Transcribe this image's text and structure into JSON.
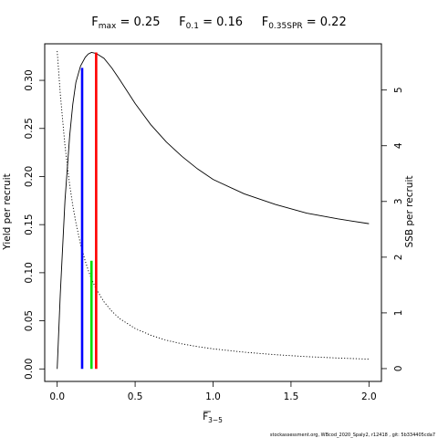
{
  "chart_data": {
    "type": "line",
    "title_parts": [
      {
        "main": "F",
        "sub": "max",
        "rest": " = 0.25"
      },
      {
        "main": "F",
        "sub": "0.1",
        "rest": " = 0.16"
      },
      {
        "main": "F",
        "sub": "0.35SPR",
        "rest": " = 0.22"
      }
    ],
    "xlabel": {
      "main": "F",
      "sub": "3−5"
    },
    "ylabel_left": "Yield per recruit",
    "ylabel_right": "SSB per recruit",
    "xlim": [
      -0.08,
      2.08
    ],
    "ylim_left": [
      -0.013,
      0.338
    ],
    "ylim_right": [
      -0.23,
      5.83
    ],
    "x_ticks": [
      0,
      0.5,
      1,
      1.5,
      2
    ],
    "x_tick_labels": [
      "0.0",
      "0.5",
      "1.0",
      "1.5",
      "2.0"
    ],
    "y_left_ticks": [
      0,
      0.05,
      0.1,
      0.15,
      0.2,
      0.25,
      0.3
    ],
    "y_left_tick_labels": [
      "0.00",
      "0.05",
      "0.10",
      "0.15",
      "0.20",
      "0.25",
      "0.30"
    ],
    "y_right_ticks": [
      0,
      1,
      2,
      3,
      4,
      5
    ],
    "y_right_tick_labels": [
      "0",
      "1",
      "2",
      "3",
      "4",
      "5"
    ],
    "series": [
      {
        "style": "solid",
        "axis": "left",
        "x": [
          0,
          0.02,
          0.05,
          0.08,
          0.1,
          0.12,
          0.15,
          0.18,
          0.2,
          0.22,
          0.25,
          0.3,
          0.35,
          0.4,
          0.5,
          0.6,
          0.7,
          0.8,
          0.9,
          1.0,
          1.2,
          1.4,
          1.6,
          1.8,
          2.0
        ],
        "y": [
          0.0,
          0.078,
          0.175,
          0.242,
          0.275,
          0.298,
          0.315,
          0.324,
          0.3275,
          0.329,
          0.328,
          0.323,
          0.313,
          0.301,
          0.276,
          0.254,
          0.236,
          0.221,
          0.208,
          0.197,
          0.182,
          0.171,
          0.162,
          0.156,
          0.151
        ]
      },
      {
        "style": "dotted",
        "axis": "right",
        "x": [
          0,
          0.02,
          0.05,
          0.08,
          0.1,
          0.12,
          0.15,
          0.18,
          0.2,
          0.22,
          0.25,
          0.3,
          0.35,
          0.4,
          0.5,
          0.6,
          0.7,
          0.8,
          0.9,
          1.0,
          1.2,
          1.4,
          1.6,
          1.8,
          2.0
        ],
        "y": [
          5.7,
          4.93,
          4.0,
          3.3,
          2.93,
          2.62,
          2.23,
          1.93,
          1.76,
          1.61,
          1.43,
          1.2,
          1.03,
          0.9,
          0.72,
          0.6,
          0.51,
          0.445,
          0.395,
          0.355,
          0.295,
          0.25,
          0.215,
          0.19,
          0.17
        ]
      }
    ],
    "reference_lines": [
      {
        "name": "F0.1",
        "color": "#0000ff",
        "x": 0.16,
        "y_left": 0.313
      },
      {
        "name": "F0.35SPR",
        "color": "#00dd00",
        "x": 0.22,
        "y_left": 0.1125
      },
      {
        "name": "Fmax",
        "color": "#ff0000",
        "x": 0.25,
        "y_left": 0.329
      }
    ],
    "grid": false
  },
  "footer": "stockassessment.org, WBcod_2020_Spaly2, r12418 , git: 5b334405cda7"
}
